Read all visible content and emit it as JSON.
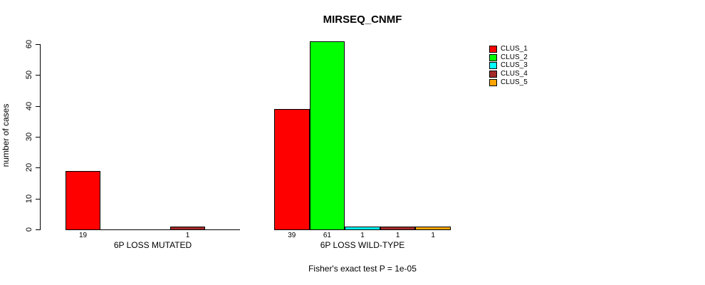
{
  "window": {
    "title": "MIRSEQ_CNMF"
  },
  "chart_data": {
    "type": "bar",
    "title": "MIRSEQ_CNMF",
    "ylabel": "number of cases",
    "xlabel": "",
    "ylim": [
      0,
      60
    ],
    "yticks": [
      0,
      10,
      20,
      30,
      40,
      50,
      60
    ],
    "grid": false,
    "legend_position": "right",
    "legend": [
      {
        "label": "CLUS_1",
        "color": "#FF0000"
      },
      {
        "label": "CLUS_2",
        "color": "#00FF00"
      },
      {
        "label": "CLUS_3",
        "color": "#00FFFF"
      },
      {
        "label": "CLUS_4",
        "color": "#A52A2A"
      },
      {
        "label": "CLUS_5",
        "color": "#FFA500"
      }
    ],
    "groups": [
      {
        "label": "6P LOSS MUTATED",
        "values": [
          {
            "cluster": "CLUS_1",
            "count": 19
          },
          {
            "cluster": "CLUS_2",
            "count": 0
          },
          {
            "cluster": "CLUS_3",
            "count": 0
          },
          {
            "cluster": "CLUS_4",
            "count": 1
          },
          {
            "cluster": "CLUS_5",
            "count": 0
          }
        ]
      },
      {
        "label": "6P LOSS WILD-TYPE",
        "values": [
          {
            "cluster": "CLUS_1",
            "count": 39
          },
          {
            "cluster": "CLUS_2",
            "count": 61
          },
          {
            "cluster": "CLUS_3",
            "count": 1
          },
          {
            "cluster": "CLUS_4",
            "count": 1
          },
          {
            "cluster": "CLUS_5",
            "count": 1
          }
        ]
      }
    ],
    "annotation": "Fisher's exact test P = 1e-05"
  }
}
